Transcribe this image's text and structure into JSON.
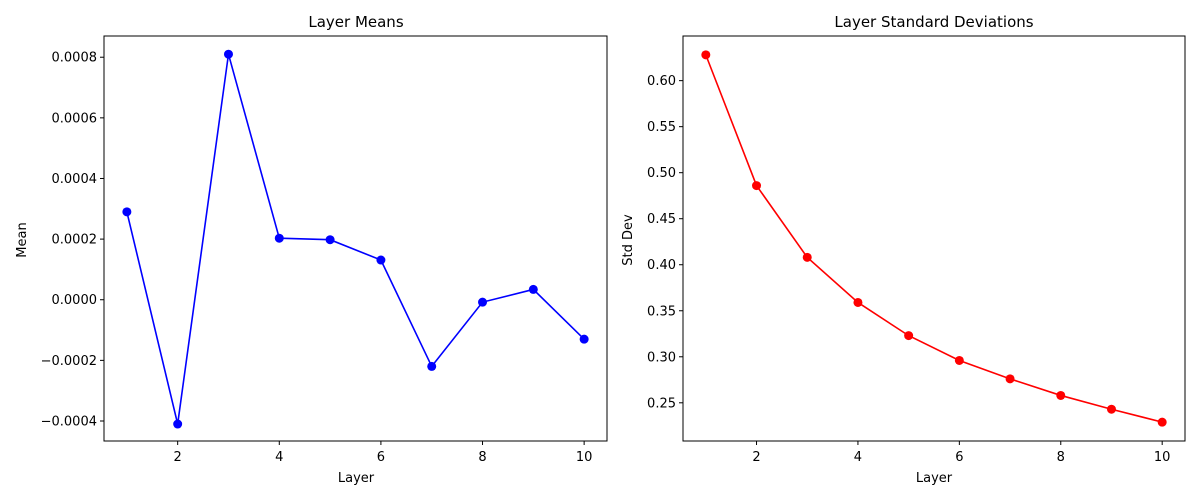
{
  "chart_data": [
    {
      "type": "line",
      "title": "Layer Means",
      "xlabel": "Layer",
      "ylabel": "Mean",
      "xlim": [
        0.55,
        10.45
      ],
      "ylim": [
        -0.000466,
        0.00087
      ],
      "xticks": [
        2,
        4,
        6,
        8,
        10
      ],
      "xtick_labels": [
        "2",
        "4",
        "6",
        "8",
        "10"
      ],
      "yticks": [
        -0.0004,
        -0.0002,
        0.0,
        0.0002,
        0.0004,
        0.0006,
        0.0008
      ],
      "ytick_labels": [
        "−0.0004",
        "−0.0002",
        "0.0000",
        "0.0002",
        "0.0004",
        "0.0006",
        "0.0008"
      ],
      "grid": false,
      "color": "#0000ff",
      "series": [
        {
          "x": [
            1,
            2,
            3,
            4,
            5,
            6,
            7,
            8,
            9,
            10
          ],
          "values": [
            0.00029,
            -0.00041,
            0.00081,
            0.000203,
            0.000198,
            0.000131,
            -0.00022,
            -8e-06,
            3.4e-05,
            -0.00013
          ]
        }
      ]
    },
    {
      "type": "line",
      "title": "Layer Standard Deviations",
      "xlabel": "Layer",
      "ylabel": "Std Dev",
      "xlim": [
        0.55,
        10.45
      ],
      "ylim": [
        0.2085,
        0.6485
      ],
      "xticks": [
        2,
        4,
        6,
        8,
        10
      ],
      "xtick_labels": [
        "2",
        "4",
        "6",
        "8",
        "10"
      ],
      "yticks": [
        0.25,
        0.3,
        0.35,
        0.4,
        0.45,
        0.5,
        0.55,
        0.6
      ],
      "ytick_labels": [
        "0.25",
        "0.30",
        "0.35",
        "0.40",
        "0.45",
        "0.50",
        "0.55",
        "0.60"
      ],
      "grid": false,
      "color": "#ff0000",
      "series": [
        {
          "x": [
            1,
            2,
            3,
            4,
            5,
            6,
            7,
            8,
            9,
            10
          ],
          "values": [
            0.628,
            0.486,
            0.408,
            0.359,
            0.323,
            0.296,
            0.276,
            0.258,
            0.243,
            0.229
          ]
        }
      ]
    }
  ]
}
